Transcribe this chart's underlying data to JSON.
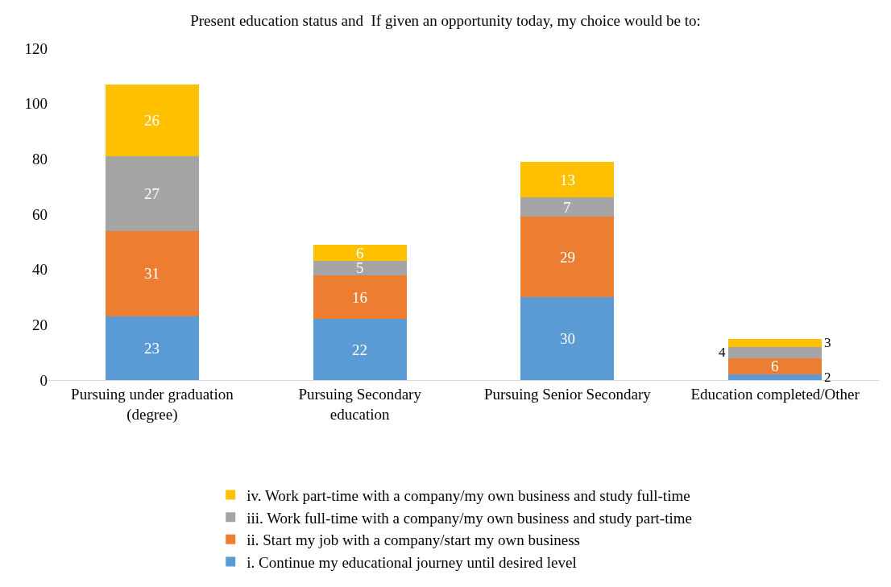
{
  "chart_data": {
    "type": "bar",
    "stacked": true,
    "title": "Present education status and  If given an opportunity today, my choice would be to:",
    "categories": [
      "Pursuing under graduation (degree)",
      "Pursuing Secondary education",
      "Pursuing Senior Secondary",
      "Education completed/Other"
    ],
    "series": [
      {
        "name": "i. Continue my educational journey until desired level",
        "color": "#5b9bd5",
        "values": [
          23,
          22,
          30,
          2
        ]
      },
      {
        "name": "ii. Start my job with a company/start my own business",
        "color": "#ed7d31",
        "values": [
          31,
          16,
          29,
          6
        ]
      },
      {
        "name": "iii. Work full-time with a company/my own business and study part-time",
        "color": "#a5a5a5",
        "values": [
          27,
          5,
          7,
          4
        ]
      },
      {
        "name": "iv. Work part-time with a company/my own business and study full-time",
        "color": "#ffc000",
        "values": [
          26,
          6,
          13,
          3
        ]
      }
    ],
    "ylim": [
      0,
      120
    ],
    "yticks": [
      0,
      20,
      40,
      60,
      80,
      100,
      120
    ],
    "grid": false,
    "legend": "bottom",
    "data_labels": true
  }
}
